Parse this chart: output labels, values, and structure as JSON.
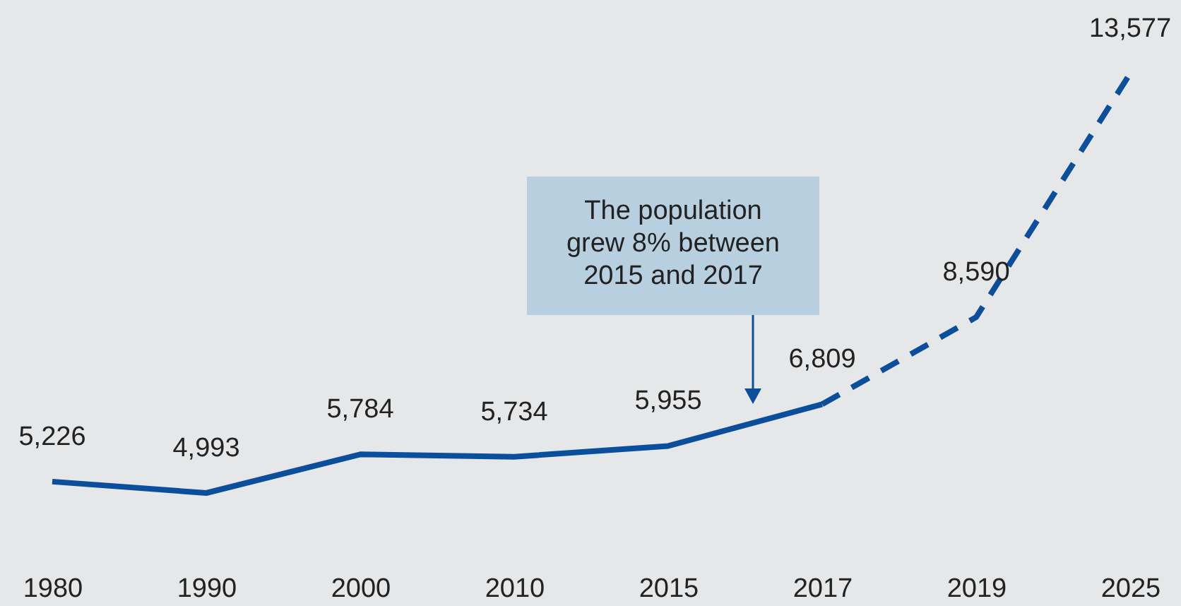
{
  "chart_data": {
    "type": "line",
    "categories": [
      "1980",
      "1990",
      "2000",
      "2010",
      "2015",
      "2017",
      "2019",
      "2025"
    ],
    "series": [
      {
        "color": "#0b4f9c",
        "line_style": "solid",
        "values": [
          5226,
          4993,
          5784,
          5734,
          5955,
          6809,
          null,
          null
        ],
        "value_labels": [
          "5,226",
          "4,993",
          "5,784",
          "5,734",
          "5,955",
          "6,809",
          null,
          null
        ]
      },
      {
        "color": "#0b4f9c",
        "line_style": "dashed",
        "values": [
          null,
          null,
          null,
          null,
          null,
          6809,
          8590,
          13577
        ],
        "value_labels": [
          null,
          null,
          null,
          null,
          null,
          null,
          "8,590",
          "13,577"
        ]
      }
    ],
    "annotations": [
      "The population grew 8% between 2015 and 2017"
    ]
  }
}
